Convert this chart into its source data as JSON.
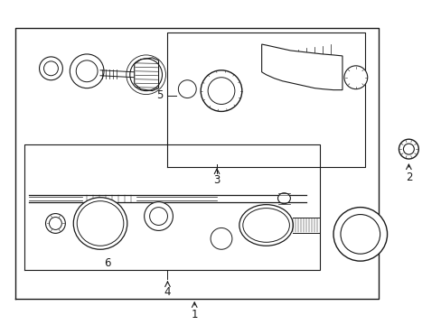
{
  "bg_color": "#ffffff",
  "line_color": "#1a1a1a",
  "fig_width": 4.89,
  "fig_height": 3.6,
  "dpi": 100,
  "labels": {
    "1": "1",
    "2": "2",
    "3": "3",
    "4": "4",
    "5": "5",
    "6": "6"
  },
  "font_size": 8.5
}
